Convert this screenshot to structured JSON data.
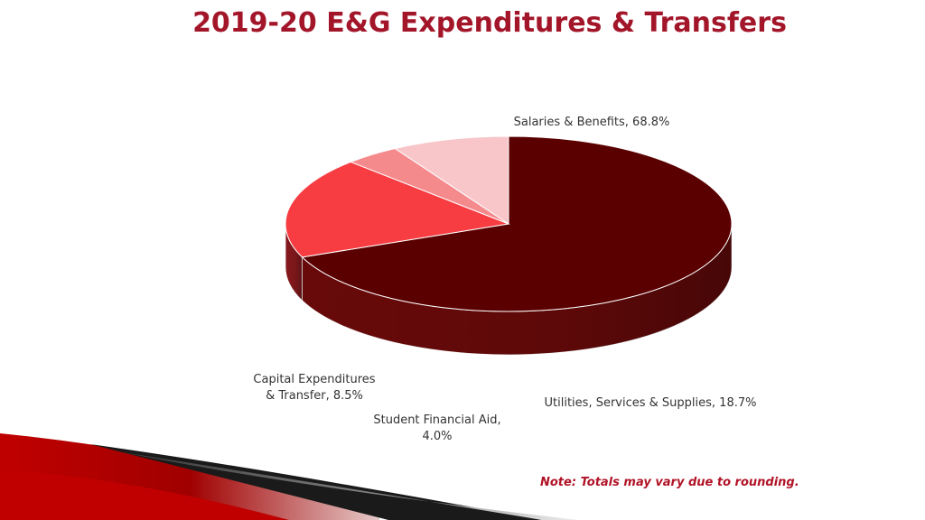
{
  "slide": {
    "title": "2019-20 E&G Expenditures & Transfers",
    "note": "Note: Totals may vary due to rounding."
  },
  "chart_data": {
    "type": "pie",
    "title": "2019-20 E&G Expenditures & Transfers",
    "unit": "%",
    "slices": [
      {
        "name": "Salaries & Benefits",
        "value": 68.8,
        "label_lines": [
          "Salaries & Benefits, 68.8%"
        ],
        "color": "#5a0000",
        "side_color": "#6e0a0a"
      },
      {
        "name": "Utilities, Services & Supplies",
        "value": 18.7,
        "label_lines": [
          "Utilities, Services & Supplies, 18.7%"
        ],
        "color": "#f73d42",
        "side_color": "#8e1a1e"
      },
      {
        "name": "Student Financial Aid",
        "value": 4.0,
        "label_lines": [
          "Student Financial Aid,",
          "4.0%"
        ],
        "color": "#f58a8d",
        "side_color": "#b04a4e"
      },
      {
        "name": "Capital Expenditures & Transfer",
        "value": 8.5,
        "label_lines": [
          "Capital Expenditures",
          "& Transfer, 8.5%"
        ],
        "color": "#f8c6c8",
        "side_color": "#c49093"
      }
    ],
    "legend": "none",
    "data_labels": "outside"
  },
  "colors": {
    "title": "#a3162a",
    "note": "#b01327",
    "accent_red": "#c00000"
  }
}
